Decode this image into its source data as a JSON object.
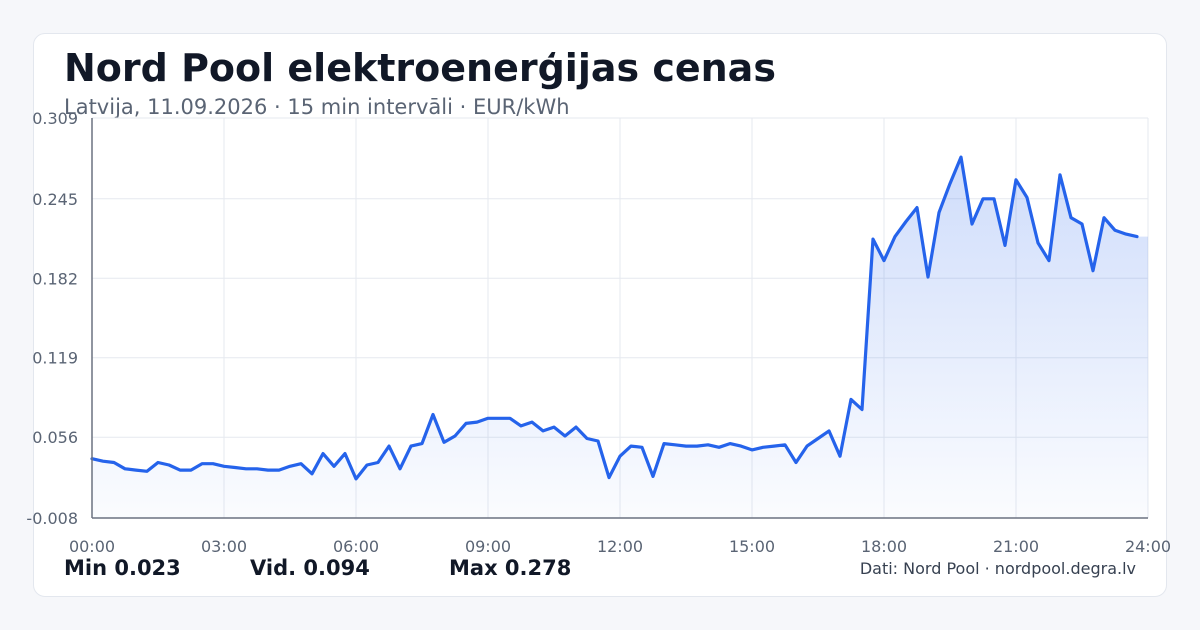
{
  "header": {
    "title": "Nord Pool elektroenerģijas cenas",
    "subtitle": "Latvija, 11.09.2026 · 15 min intervāli · EUR/kWh"
  },
  "stats": {
    "min": "Min 0.023",
    "avg": "Vid. 0.094",
    "max": "Max 0.278"
  },
  "source": "Dati: Nord Pool · nordpool.degra.lv",
  "colors": {
    "line": "#2563eb",
    "fill": "#2563eb",
    "grid": "#e6e9ef",
    "axis": "#6b7280"
  },
  "chart_data": {
    "type": "area",
    "title": "Nord Pool elektroenerģijas cenas",
    "subtitle": "Latvija, 11.09.2026 · 15 min intervāli · EUR/kWh",
    "xlabel": "",
    "ylabel": "",
    "x_unit": "hours",
    "xlim": [
      0,
      24
    ],
    "ylim": [
      -0.008,
      0.309
    ],
    "yticks": [
      -0.008,
      0.056,
      0.119,
      0.182,
      0.245,
      0.309
    ],
    "ytick_labels": [
      "-0.008",
      "0.056",
      "0.119",
      "0.182",
      "0.245",
      "0.309"
    ],
    "xticks": [
      0,
      3,
      6,
      9,
      12,
      15,
      18,
      21,
      24
    ],
    "xtick_labels": [
      "00:00",
      "03:00",
      "06:00",
      "09:00",
      "12:00",
      "15:00",
      "18:00",
      "21:00",
      "24:00"
    ],
    "grid": true,
    "legend": "none",
    "x": [
      0,
      0.25,
      0.5,
      0.75,
      1,
      1.25,
      1.5,
      1.75,
      2,
      2.25,
      2.5,
      2.75,
      3,
      3.25,
      3.5,
      3.75,
      4,
      4.25,
      4.5,
      4.75,
      5,
      5.25,
      5.5,
      5.75,
      6,
      6.25,
      6.5,
      6.75,
      7,
      7.25,
      7.5,
      7.75,
      8,
      8.25,
      8.5,
      8.75,
      9,
      9.25,
      9.5,
      9.75,
      10,
      10.25,
      10.5,
      10.75,
      11,
      11.25,
      11.5,
      11.75,
      12,
      12.25,
      12.5,
      12.75,
      13,
      13.25,
      13.5,
      13.75,
      14,
      14.25,
      14.5,
      14.75,
      15,
      15.25,
      15.5,
      15.75,
      16,
      16.25,
      16.5,
      16.75,
      17,
      17.25,
      17.5,
      17.75,
      18,
      18.25,
      18.5,
      18.75,
      19,
      19.25,
      19.5,
      19.75,
      20,
      20.25,
      20.5,
      20.75,
      21,
      21.25,
      21.5,
      21.75,
      22,
      22.25,
      22.5,
      22.75,
      23,
      23.25,
      23.5,
      23.75
    ],
    "values": [
      0.039,
      0.037,
      0.036,
      0.031,
      0.03,
      0.029,
      0.036,
      0.034,
      0.03,
      0.03,
      0.035,
      0.035,
      0.033,
      0.032,
      0.031,
      0.031,
      0.03,
      0.03,
      0.033,
      0.035,
      0.027,
      0.043,
      0.033,
      0.043,
      0.023,
      0.034,
      0.036,
      0.049,
      0.031,
      0.049,
      0.051,
      0.074,
      0.052,
      0.057,
      0.067,
      0.068,
      0.071,
      0.071,
      0.071,
      0.065,
      0.068,
      0.061,
      0.064,
      0.057,
      0.064,
      0.055,
      0.053,
      0.024,
      0.041,
      0.049,
      0.048,
      0.025,
      0.051,
      0.05,
      0.049,
      0.049,
      0.05,
      0.048,
      0.051,
      0.049,
      0.046,
      0.048,
      0.049,
      0.05,
      0.036,
      0.049,
      0.055,
      0.061,
      0.041,
      0.086,
      0.078,
      0.213,
      0.196,
      0.215,
      0.227,
      0.238,
      0.183,
      0.234,
      0.257,
      0.278,
      0.225,
      0.245,
      0.245,
      0.208,
      0.26,
      0.246,
      0.21,
      0.196,
      0.264,
      0.23,
      0.225,
      0.188,
      0.23,
      0.22,
      0.217,
      0.215
    ]
  }
}
